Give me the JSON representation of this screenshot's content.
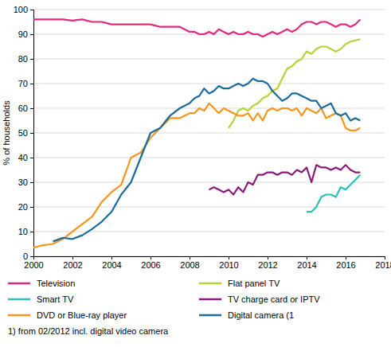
{
  "chart_data": {
    "type": "line",
    "y_label": "% of households",
    "footnote": "1) from 02/2012 incl. digital video camera",
    "x": [
      2000,
      2000.5,
      2001,
      2001.5,
      2002,
      2002.5,
      2003,
      2003.5,
      2004,
      2004.5,
      2005,
      2005.5,
      2006,
      2006.5,
      2007,
      2007.5,
      2008,
      2008.25,
      2008.5,
      2008.75,
      2009,
      2009.25,
      2009.5,
      2009.75,
      2010,
      2010.25,
      2010.5,
      2010.75,
      2011,
      2011.25,
      2011.5,
      2011.75,
      2012,
      2012.25,
      2012.5,
      2012.75,
      2013,
      2013.25,
      2013.5,
      2013.75,
      2014,
      2014.25,
      2014.5,
      2014.75,
      2015,
      2015.25,
      2015.5,
      2015.75,
      2016,
      2016.25,
      2016.5,
      2016.75
    ],
    "xlim": [
      2000,
      2018
    ],
    "xticks": [
      2000,
      2002,
      2004,
      2006,
      2008,
      2010,
      2012,
      2014,
      2016,
      2018
    ],
    "ylim": [
      0,
      100
    ],
    "yticks": [
      0,
      10,
      20,
      30,
      40,
      50,
      60,
      70,
      80,
      90,
      100
    ],
    "grid": true,
    "legend": "bottom",
    "series": [
      {
        "name": "Television",
        "color": "#e0297f",
        "values": [
          96,
          96,
          96,
          96,
          95.5,
          96,
          95,
          95,
          94,
          94,
          94,
          94,
          94,
          93,
          93,
          93,
          91,
          91,
          90,
          90,
          91,
          90,
          92,
          91,
          90,
          91,
          90,
          90,
          91,
          90,
          90,
          89,
          90,
          91,
          90,
          91,
          92,
          91,
          92,
          94,
          95,
          95,
          94,
          95,
          95,
          94,
          93,
          94,
          94,
          93,
          94,
          96
        ]
      },
      {
        "name": "Flat panel TV",
        "color": "#b4d334",
        "values": [
          null,
          null,
          null,
          null,
          null,
          null,
          null,
          null,
          null,
          null,
          null,
          null,
          null,
          null,
          null,
          null,
          null,
          null,
          null,
          null,
          null,
          null,
          null,
          null,
          52,
          55,
          59,
          60,
          59,
          61,
          62,
          64,
          65,
          67,
          68,
          72,
          76,
          77,
          79,
          80,
          83,
          82,
          84,
          85,
          85,
          84,
          83,
          84,
          86,
          87,
          87.5,
          88
        ]
      },
      {
        "name": "Smart TV",
        "color": "#2dbfb4",
        "values": [
          null,
          null,
          null,
          null,
          null,
          null,
          null,
          null,
          null,
          null,
          null,
          null,
          null,
          null,
          null,
          null,
          null,
          null,
          null,
          null,
          null,
          null,
          null,
          null,
          null,
          null,
          null,
          null,
          null,
          null,
          null,
          null,
          null,
          null,
          null,
          null,
          null,
          null,
          null,
          null,
          18,
          18,
          20,
          24,
          25,
          25,
          24,
          28,
          27,
          29,
          31,
          33
        ]
      },
      {
        "name": "TV charge card or IPTV",
        "color": "#8c1a7d",
        "values": [
          null,
          null,
          null,
          null,
          null,
          null,
          null,
          null,
          null,
          null,
          null,
          null,
          null,
          null,
          null,
          null,
          null,
          null,
          null,
          null,
          27,
          28,
          27,
          26,
          27,
          25,
          28,
          26,
          30,
          29,
          33,
          33,
          34,
          34,
          33,
          34,
          34,
          33,
          35,
          34,
          36,
          30,
          37,
          36,
          36,
          35,
          36,
          35,
          37,
          35,
          34,
          34
        ]
      },
      {
        "name": "DVD or Blue-ray player",
        "color": "#f7941d",
        "values": [
          3.5,
          4.5,
          5,
          7,
          10,
          13,
          16,
          22,
          26,
          29,
          40,
          42,
          48,
          52,
          56,
          56,
          58,
          58,
          60,
          59,
          62,
          60,
          58,
          60,
          59,
          58,
          57,
          57,
          58,
          55,
          58,
          55,
          59,
          60,
          59,
          60,
          60,
          59,
          60,
          57,
          60,
          59,
          58,
          60,
          56,
          57,
          58,
          57,
          52,
          51,
          51,
          52
        ]
      },
      {
        "name": "Digital camera (1",
        "color": "#1b6c9c",
        "values": [
          null,
          null,
          6,
          7.5,
          7,
          8.5,
          11,
          14,
          18,
          25,
          30,
          40,
          50,
          52,
          57,
          60,
          62,
          64,
          65,
          68,
          66,
          67,
          69,
          68,
          68,
          69,
          70,
          69,
          70,
          72,
          71,
          71,
          70,
          67,
          65,
          63,
          64,
          66,
          66,
          65,
          64,
          63,
          63,
          60,
          61,
          62,
          58,
          57,
          58,
          55,
          56,
          55
        ]
      }
    ]
  }
}
